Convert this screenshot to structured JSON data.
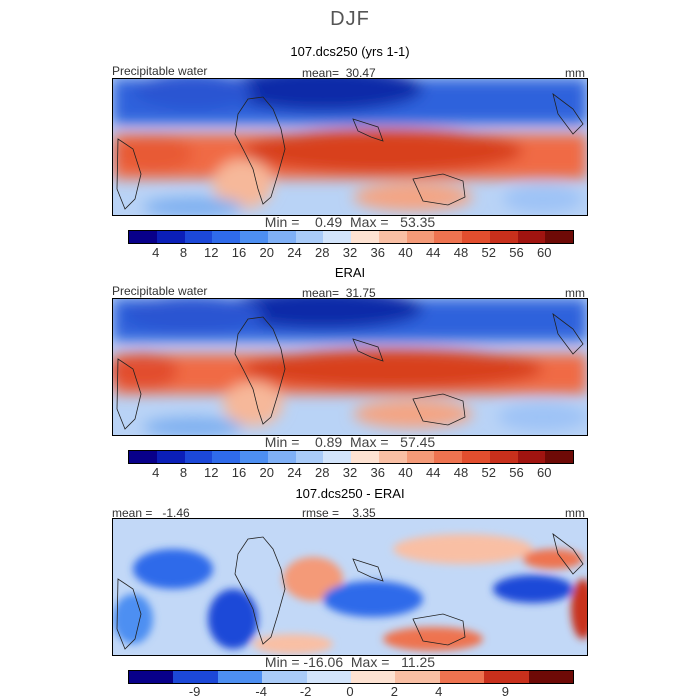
{
  "title": "DJF",
  "panels": [
    {
      "heading": "107.dcs250 (yrs 1-1)",
      "left_label": "Precipitable water",
      "center_label": "mean=  30.47",
      "right_label": "mm",
      "minmax": "Min =    0.49  Max =   53.35",
      "colorbar_ticks": [
        "4",
        "8",
        "12",
        "16",
        "20",
        "24",
        "28",
        "32",
        "36",
        "40",
        "44",
        "48",
        "52",
        "56",
        "60"
      ]
    },
    {
      "heading": "ERAI",
      "left_label": "Precipitable water",
      "center_label": "mean=  31.75",
      "right_label": "mm",
      "minmax": "Min =    0.89  Max =   57.45",
      "colorbar_ticks": [
        "4",
        "8",
        "12",
        "16",
        "20",
        "24",
        "28",
        "32",
        "36",
        "40",
        "44",
        "48",
        "52",
        "56",
        "60"
      ]
    },
    {
      "heading": "107.dcs250 - ERAI",
      "left_label": "mean =   -1.46",
      "center_label": "rmse =    3.35",
      "right_label": "mm",
      "minmax": "Min = -16.06  Max =   11.25",
      "colorbar_ticks": [
        "-9",
        "-4",
        "-2",
        "0",
        "2",
        "4",
        "9"
      ]
    }
  ],
  "colorbar_colors": [
    "#08008a",
    "#0b1fb8",
    "#1c48d8",
    "#2f6bea",
    "#4d8ff2",
    "#7fb0f6",
    "#a9cbf8",
    "#d2e4fb",
    "#fde2d2",
    "#f9bfa4",
    "#f49a78",
    "#ee7350",
    "#e24e2e",
    "#c8301c",
    "#a01410",
    "#6e0a06"
  ]
}
